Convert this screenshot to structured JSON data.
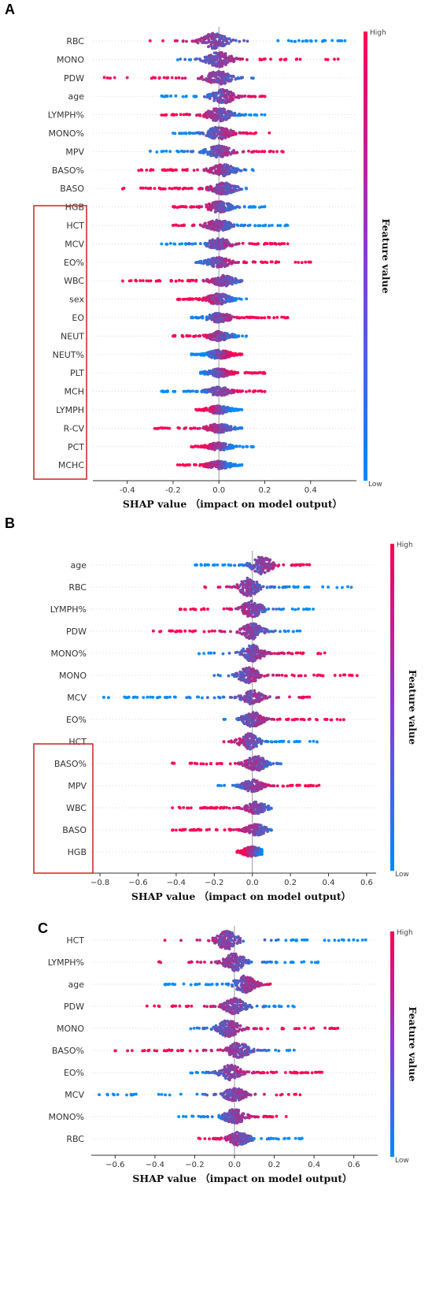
{
  "colors": {
    "high": "#ff0052",
    "low": "#008bfa",
    "highlight_box": "#cc2222"
  },
  "chart_data": [
    {
      "panel": "A",
      "type": "scatter",
      "subtype": "shap-beeswarm",
      "xlabel": "SHAP value （impact on model output）",
      "colorbar": {
        "label": "Feature value",
        "high": "High",
        "low": "Low"
      },
      "xlim": [
        -0.55,
        0.6
      ],
      "xticks": [
        -0.4,
        -0.2,
        0.0,
        0.2,
        0.4
      ],
      "xtick_labels": [
        "-0.4",
        "-0.2",
        "0.0",
        "0.2",
        "0.4"
      ],
      "highlighted_features": [
        "sex",
        "EO",
        "NEUT",
        "NEUT%",
        "PLT",
        "MCH",
        "LYMPH",
        "R-CV",
        "PCT",
        "MCHC"
      ],
      "features": [
        {
          "name": "RBC",
          "min": -0.3,
          "max": 0.55,
          "width": 1.0,
          "peak": -0.02,
          "trend": -1
        },
        {
          "name": "MONO",
          "min": -0.18,
          "max": 0.52,
          "width": 0.95,
          "peak": 0.0,
          "trend": 1
        },
        {
          "name": "PDW",
          "min": -0.5,
          "max": 0.15,
          "width": 0.9,
          "peak": 0.0,
          "trend": -1
        },
        {
          "name": "age",
          "min": -0.25,
          "max": 0.2,
          "width": 0.9,
          "peak": 0.02,
          "trend": 1
        },
        {
          "name": "LYMPH%",
          "min": -0.25,
          "max": 0.2,
          "width": 0.85,
          "peak": 0.0,
          "trend": -1
        },
        {
          "name": "MONO%",
          "min": -0.2,
          "max": 0.22,
          "width": 0.8,
          "peak": 0.0,
          "trend": 1
        },
        {
          "name": "MPV",
          "min": -0.3,
          "max": 0.28,
          "width": 0.75,
          "peak": 0.0,
          "trend": 1
        },
        {
          "name": "BASO%",
          "min": -0.35,
          "max": 0.15,
          "width": 0.75,
          "peak": 0.02,
          "trend": -1
        },
        {
          "name": "BASO",
          "min": -0.42,
          "max": 0.12,
          "width": 0.75,
          "peak": 0.02,
          "trend": -1
        },
        {
          "name": "HGB",
          "min": -0.2,
          "max": 0.2,
          "width": 0.7,
          "peak": 0.0,
          "trend": -1
        },
        {
          "name": "HCT",
          "min": -0.2,
          "max": 0.3,
          "width": 0.7,
          "peak": 0.0,
          "trend": -1
        },
        {
          "name": "MCV",
          "min": -0.25,
          "max": 0.3,
          "width": 0.7,
          "peak": 0.0,
          "trend": 1
        },
        {
          "name": "EO%",
          "min": -0.1,
          "max": 0.4,
          "width": 0.65,
          "peak": 0.0,
          "trend": 1
        },
        {
          "name": "WBC",
          "min": -0.42,
          "max": 0.1,
          "width": 0.7,
          "peak": 0.02,
          "trend": -1
        },
        {
          "name": "sex",
          "min": -0.18,
          "max": 0.12,
          "width": 0.7,
          "peak": 0.0,
          "trend": -1
        },
        {
          "name": "EO",
          "min": -0.12,
          "max": 0.3,
          "width": 0.6,
          "peak": 0.0,
          "trend": 1
        },
        {
          "name": "NEUT",
          "min": -0.2,
          "max": 0.12,
          "width": 0.6,
          "peak": 0.0,
          "trend": -1
        },
        {
          "name": "NEUT%",
          "min": -0.12,
          "max": 0.1,
          "width": 0.55,
          "peak": 0.0,
          "trend": 1
        },
        {
          "name": "PLT",
          "min": -0.08,
          "max": 0.2,
          "width": 0.55,
          "peak": 0.0,
          "trend": 1
        },
        {
          "name": "MCH",
          "min": -0.25,
          "max": 0.2,
          "width": 0.55,
          "peak": 0.0,
          "trend": 1
        },
        {
          "name": "LYMPH",
          "min": -0.1,
          "max": 0.1,
          "width": 0.5,
          "peak": 0.0,
          "trend": -1
        },
        {
          "name": "R-CV",
          "min": -0.28,
          "max": 0.1,
          "width": 0.55,
          "peak": 0.0,
          "trend": -1
        },
        {
          "name": "PCT",
          "min": -0.12,
          "max": 0.15,
          "width": 0.5,
          "peak": 0.0,
          "trend": -1
        },
        {
          "name": "MCHC",
          "min": -0.18,
          "max": 0.1,
          "width": 0.5,
          "peak": 0.0,
          "trend": -1
        }
      ]
    },
    {
      "panel": "B",
      "type": "scatter",
      "subtype": "shap-beeswarm",
      "xlabel": "SHAP value （impact on model output）",
      "colorbar": {
        "label": "Feature value",
        "high": "High",
        "low": "Low"
      },
      "xlim": [
        -0.85,
        0.65
      ],
      "xticks": [
        -0.8,
        -0.6,
        -0.4,
        -0.2,
        0.0,
        0.2,
        0.4,
        0.6
      ],
      "xtick_labels": [
        "−0.8",
        "−0.6",
        "−0.4",
        "−0.2",
        "0.0",
        "0.2",
        "0.4",
        "0.6"
      ],
      "highlighted_features": [
        "MPV",
        "WBC",
        "BASO",
        "HGB"
      ],
      "features": [
        {
          "name": "age",
          "min": -0.3,
          "max": 0.3,
          "width": 1.0,
          "peak": 0.05,
          "trend": 1
        },
        {
          "name": "RBC",
          "min": -0.25,
          "max": 0.52,
          "width": 1.0,
          "peak": -0.02,
          "trend": -1
        },
        {
          "name": "LYMPH%",
          "min": -0.38,
          "max": 0.32,
          "width": 0.9,
          "peak": 0.0,
          "trend": -1
        },
        {
          "name": "PDW",
          "min": -0.52,
          "max": 0.25,
          "width": 0.85,
          "peak": 0.0,
          "trend": -1
        },
        {
          "name": "MONO%",
          "min": -0.28,
          "max": 0.38,
          "width": 0.9,
          "peak": 0.0,
          "trend": 1
        },
        {
          "name": "MONO",
          "min": -0.2,
          "max": 0.55,
          "width": 0.85,
          "peak": -0.02,
          "trend": 1
        },
        {
          "name": "MCV",
          "min": -0.78,
          "max": 0.3,
          "width": 0.75,
          "peak": 0.0,
          "trend": 1
        },
        {
          "name": "EO%",
          "min": -0.15,
          "max": 0.48,
          "width": 0.8,
          "peak": 0.0,
          "trend": 1
        },
        {
          "name": "HCT",
          "min": -0.15,
          "max": 0.34,
          "width": 0.85,
          "peak": -0.02,
          "trend": -1
        },
        {
          "name": "BASO%",
          "min": -0.42,
          "max": 0.15,
          "width": 0.8,
          "peak": 0.02,
          "trend": -1
        },
        {
          "name": "MPV",
          "min": -0.18,
          "max": 0.35,
          "width": 0.65,
          "peak": 0.0,
          "trend": 1
        },
        {
          "name": "WBC",
          "min": -0.42,
          "max": 0.1,
          "width": 0.65,
          "peak": 0.02,
          "trend": -1
        },
        {
          "name": "BASO",
          "min": -0.42,
          "max": 0.1,
          "width": 0.6,
          "peak": 0.02,
          "trend": -1
        },
        {
          "name": "HGB",
          "min": -0.08,
          "max": 0.05,
          "width": 0.55,
          "peak": 0.0,
          "trend": -1
        }
      ]
    },
    {
      "panel": "C",
      "type": "scatter",
      "subtype": "shap-beeswarm",
      "xlabel": "SHAP value （impact on model output）",
      "colorbar": {
        "label": "Feature value",
        "high": "High",
        "low": "Low"
      },
      "xlim": [
        -0.72,
        0.72
      ],
      "xticks": [
        -0.6,
        -0.4,
        -0.2,
        0.0,
        0.2,
        0.4,
        0.6
      ],
      "xtick_labels": [
        "−0.6",
        "−0.4",
        "−0.2",
        "0.0",
        "0.2",
        "0.4",
        "0.6"
      ],
      "highlighted_features": [],
      "features": [
        {
          "name": "HCT",
          "min": -0.35,
          "max": 0.66,
          "width": 1.0,
          "peak": -0.04,
          "trend": -1
        },
        {
          "name": "LYMPH%",
          "min": -0.38,
          "max": 0.42,
          "width": 0.95,
          "peak": 0.0,
          "trend": -1
        },
        {
          "name": "age",
          "min": -0.35,
          "max": 0.18,
          "width": 0.9,
          "peak": 0.05,
          "trend": 1
        },
        {
          "name": "PDW",
          "min": -0.44,
          "max": 0.3,
          "width": 0.85,
          "peak": 0.0,
          "trend": -1
        },
        {
          "name": "MONO",
          "min": -0.22,
          "max": 0.52,
          "width": 0.9,
          "peak": -0.03,
          "trend": 1
        },
        {
          "name": "BASO%",
          "min": -0.6,
          "max": 0.3,
          "width": 0.85,
          "peak": 0.02,
          "trend": -1
        },
        {
          "name": "EO%",
          "min": -0.22,
          "max": 0.44,
          "width": 0.8,
          "peak": -0.02,
          "trend": 1
        },
        {
          "name": "MCV",
          "min": -0.68,
          "max": 0.33,
          "width": 0.7,
          "peak": 0.0,
          "trend": 1
        },
        {
          "name": "MONO%",
          "min": -0.28,
          "max": 0.26,
          "width": 0.8,
          "peak": 0.0,
          "trend": 1
        },
        {
          "name": "RBC",
          "min": -0.18,
          "max": 0.34,
          "width": 0.7,
          "peak": 0.02,
          "trend": -1
        }
      ]
    }
  ]
}
